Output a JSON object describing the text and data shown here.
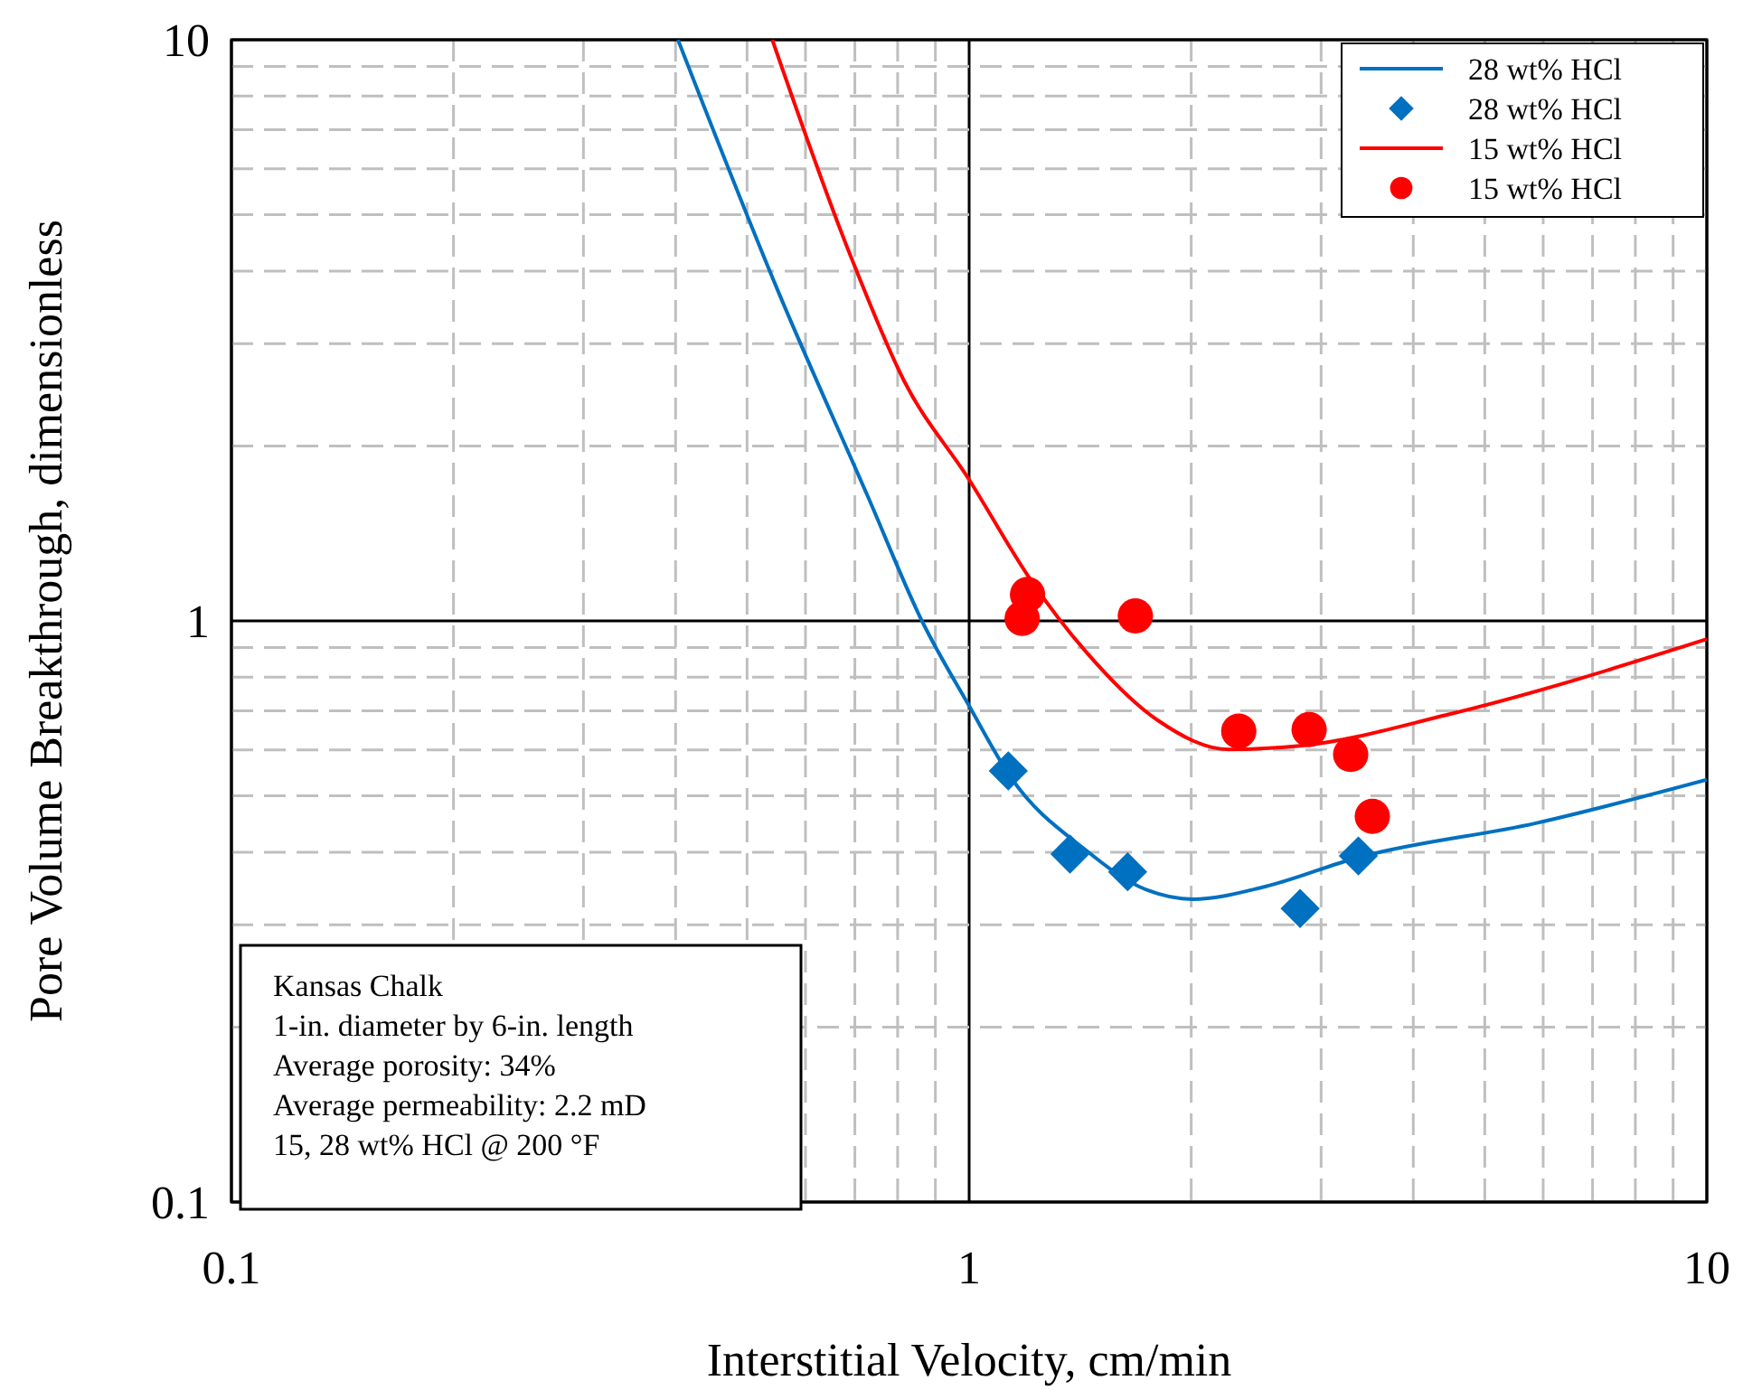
{
  "chart_data": {
    "type": "line",
    "xlabel": "Interstitial Velocity, cm/min",
    "ylabel": "Pore Volume Breakthrough, dimensionless",
    "log": "xy",
    "grid": true,
    "legend": "top right",
    "xlim": [
      0.1,
      10
    ],
    "ylim": [
      0.1,
      10
    ],
    "xticks": [
      0.1,
      {
        "value": 0.2,
        "label": null
      },
      {
        "value": 0.3,
        "label": null
      },
      {
        "value": 0.4,
        "label": null
      },
      {
        "value": 0.5,
        "label": null
      },
      {
        "value": 0.6,
        "label": null
      },
      {
        "value": 0.7,
        "label": null
      },
      {
        "value": 0.8,
        "label": null
      },
      {
        "value": 0.9,
        "label": null
      },
      1,
      {
        "value": 2,
        "label": null
      },
      {
        "value": 3,
        "label": null
      },
      {
        "value": 4,
        "label": null
      },
      {
        "value": 5,
        "label": null
      },
      {
        "value": 6,
        "label": null
      },
      {
        "value": 7,
        "label": null
      },
      {
        "value": 8,
        "label": null
      },
      {
        "value": 9,
        "label": null
      },
      10
    ],
    "yticks": [
      0.1,
      {
        "value": 0.2,
        "label": null
      },
      {
        "value": 0.3,
        "label": null
      },
      {
        "value": 0.4,
        "label": null
      },
      {
        "value": 0.5,
        "label": null
      },
      {
        "value": 0.6,
        "label": null
      },
      {
        "value": 0.7,
        "label": null
      },
      {
        "value": 0.8,
        "label": null
      },
      {
        "value": 0.9,
        "label": null
      },
      1,
      {
        "value": 2,
        "label": null
      },
      {
        "value": 3,
        "label": null
      },
      {
        "value": 4,
        "label": null
      },
      {
        "value": 5,
        "label": null
      },
      {
        "value": 6,
        "label": null
      },
      {
        "value": 7,
        "label": null
      },
      {
        "value": 8,
        "label": null
      },
      {
        "value": 9,
        "label": null
      },
      10
    ],
    "series": [
      {
        "name": "28 wt% HCl",
        "type": "line",
        "color": "#0070c0",
        "marker": "none",
        "x": [
          0.403,
          0.55,
          0.73,
          0.863,
          1,
          1.14,
          1.44,
          1.7,
          2.01,
          2.52,
          3.35,
          5.88,
          10
        ],
        "values": [
          10,
          3.71,
          1.63,
          1,
          0.714,
          0.537,
          0.403,
          0.349,
          0.332,
          0.349,
          0.391,
          0.449,
          0.533
        ]
      },
      {
        "name": "28 wt% HCl",
        "type": "scatter",
        "color": "#0070c0",
        "marker": "diamond",
        "x": [
          1.13,
          1.37,
          1.64,
          2.81,
          3.37
        ],
        "values": [
          0.552,
          0.397,
          0.37,
          0.32,
          0.394
        ]
      },
      {
        "name": "15 wt% HCl",
        "type": "line",
        "color": "#ff0000",
        "marker": "none",
        "x": [
          0.541,
          0.689,
          0.816,
          1,
          1.21,
          1.44,
          1.8,
          2.25,
          2.83,
          4.44,
          10
        ],
        "values": [
          10,
          4.28,
          2.59,
          1.75,
          1.18,
          0.885,
          0.675,
          0.601,
          0.61,
          0.689,
          0.93
        ]
      },
      {
        "name": "15 wt% HCl",
        "type": "scatter",
        "color": "#ff0000",
        "marker": "circle",
        "x": [
          1.2,
          1.18,
          1.68,
          2.32,
          2.89,
          3.29,
          3.52
        ],
        "values": [
          1.11,
          1.01,
          1.02,
          0.646,
          0.65,
          0.589,
          0.461
        ]
      }
    ],
    "annotations": [
      "Kansas Chalk",
      "1-in. diameter by 6-in. length",
      "Average porosity: 34%",
      "Average permeability: 2.2 mD",
      "15, 28 wt% HCl @ 200 °F"
    ]
  }
}
